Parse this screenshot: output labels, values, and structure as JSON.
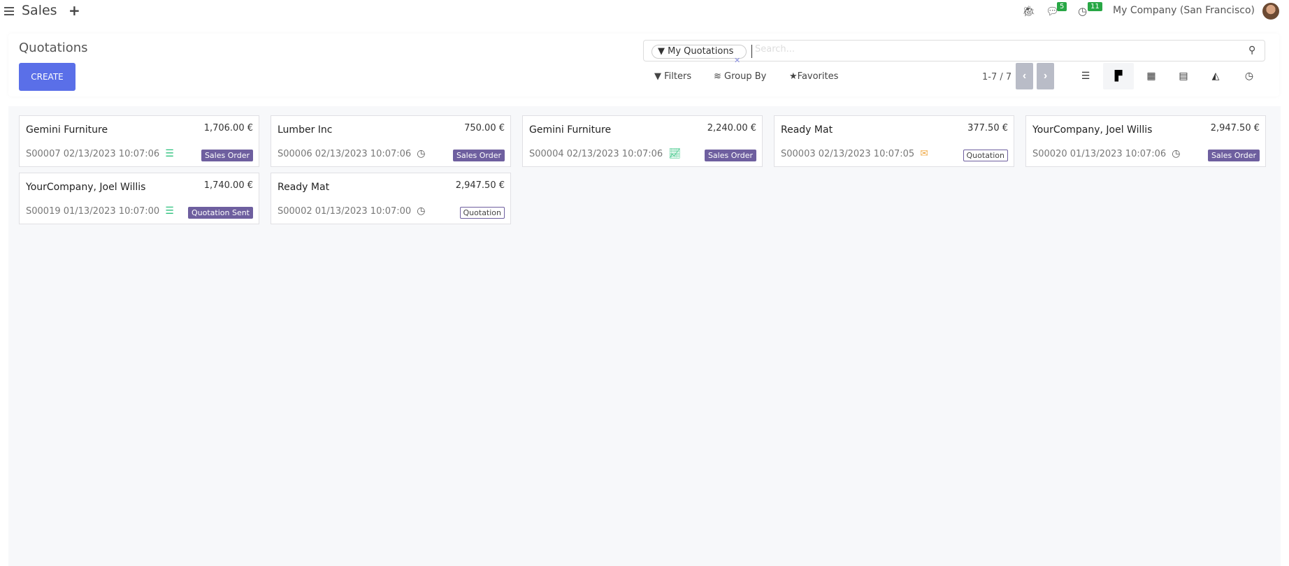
{
  "topbar": {
    "app_name": "Sales",
    "messages_count": "5",
    "activities_count": "11",
    "company": "My Company (San Francisco)"
  },
  "control_panel": {
    "title": "Quotations",
    "create_label": "CREATE",
    "search": {
      "facet": "My Quotations",
      "placeholder": "Search..."
    },
    "filters_label": "Filters",
    "groupby_label": "Group By",
    "favorites_label": "Favorites",
    "pager": "1-7 / 7",
    "views": [
      "list",
      "kanban",
      "calendar",
      "pivot",
      "graph",
      "activity"
    ],
    "active_view": "kanban"
  },
  "colors": {
    "accent": "#5a6fe8",
    "state_badge": "#6e5f9f",
    "activity_green": "#2ec27e",
    "activity_orange": "#f0ad4e"
  },
  "cards": [
    {
      "customer": "Gemini Furniture",
      "amount": "1,706.00 €",
      "ref": "S00007 02/13/2023 10:07:06",
      "activity": "tasks-icon",
      "state": "Sales Order",
      "style": "fill"
    },
    {
      "customer": "Lumber Inc",
      "amount": "750.00 €",
      "ref": "S00006 02/13/2023 10:07:06",
      "activity": "clock-icon",
      "state": "Sales Order",
      "style": "fill"
    },
    {
      "customer": "Gemini Furniture",
      "amount": "2,240.00 €",
      "ref": "S00004 02/13/2023 10:07:06",
      "activity": "line-chart-icon",
      "state": "Sales Order",
      "style": "fill"
    },
    {
      "customer": "Ready Mat",
      "amount": "377.50 €",
      "ref": "S00003 02/13/2023 10:07:05",
      "activity": "envelope-icon",
      "state": "Quotation",
      "style": "out"
    },
    {
      "customer": "YourCompany, Joel Willis",
      "amount": "2,947.50 €",
      "ref": "S00020 01/13/2023 10:07:06",
      "activity": "clock-icon",
      "state": "Sales Order",
      "style": "fill"
    },
    {
      "customer": "YourCompany, Joel Willis",
      "amount": "1,740.00 €",
      "ref": "S00019 01/13/2023 10:07:00",
      "activity": "tasks-icon",
      "state": "Quotation Sent",
      "style": "fill"
    },
    {
      "customer": "Ready Mat",
      "amount": "2,947.50 €",
      "ref": "S00002 01/13/2023 10:07:00",
      "activity": "clock-icon",
      "state": "Quotation",
      "style": "out"
    }
  ]
}
